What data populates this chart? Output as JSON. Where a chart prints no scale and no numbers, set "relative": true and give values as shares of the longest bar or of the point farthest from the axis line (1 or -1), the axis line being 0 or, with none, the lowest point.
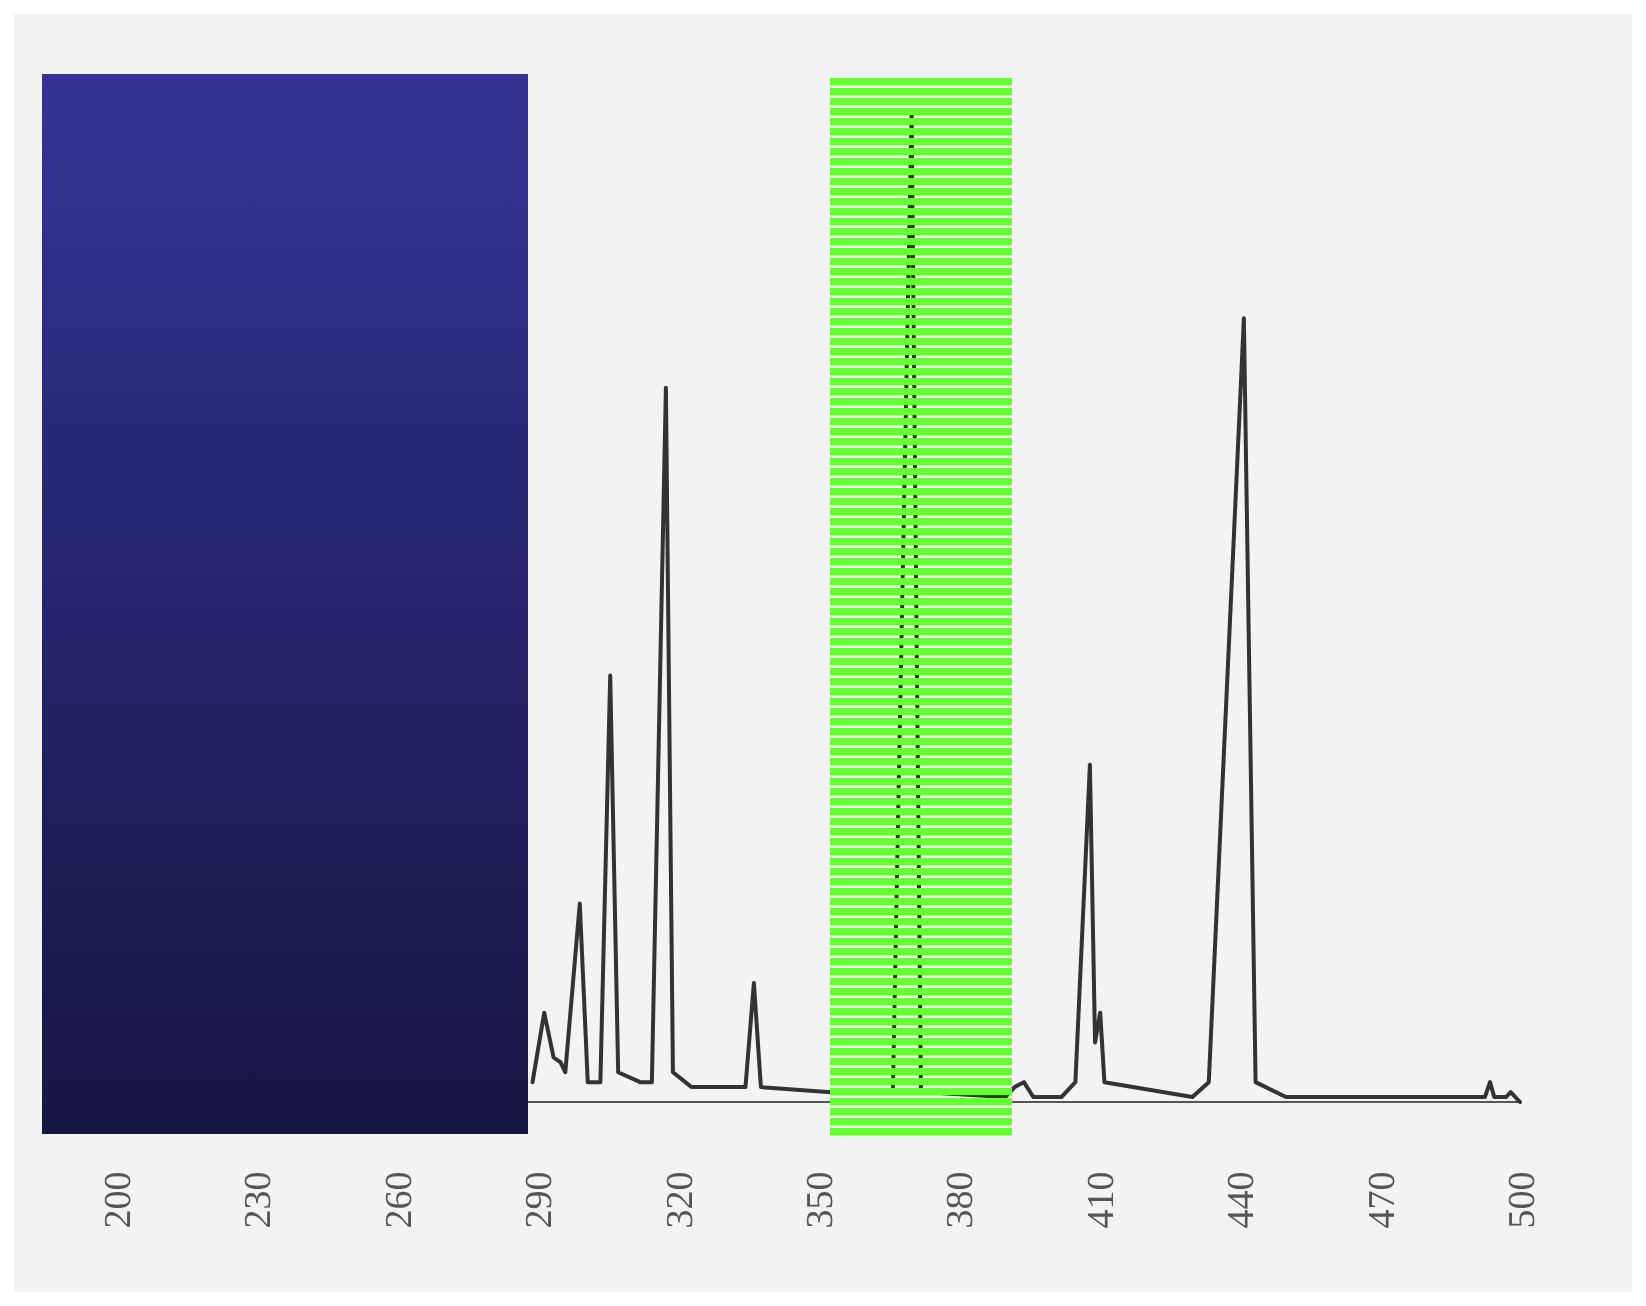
{
  "chart_data": {
    "type": "line",
    "relative": true,
    "xlim": [
      200,
      500
    ],
    "xticks": [
      200,
      230,
      260,
      290,
      320,
      350,
      380,
      410,
      440,
      470,
      500
    ],
    "grid": false,
    "marker": "none",
    "line_style": "solid",
    "series": [
      {
        "color": "#333333",
        "x": [
          289,
          291.5,
          293.5,
          295,
          296,
          299.1,
          300.8,
          303.5,
          305.6,
          307.3,
          312,
          314.5,
          317.5,
          319,
          323,
          334.5,
          336.3,
          337.8,
          352,
          366,
          370,
          372,
          390,
          392,
          394,
          396,
          402,
          405,
          408.1,
          409.2,
          410.3,
          411.2,
          430,
          433.5,
          441,
          443.5,
          450,
          492.5,
          493.6,
          494.5,
          497,
          498,
          500
        ],
        "values": [
          0.02,
          0.09,
          0.045,
          0.04,
          0.03,
          0.2,
          0.02,
          0.02,
          0.43,
          0.03,
          0.02,
          0.02,
          0.72,
          0.03,
          0.015,
          0.015,
          0.12,
          0.015,
          0.01,
          0.01,
          1.0,
          0.01,
          0.005,
          0.015,
          0.02,
          0.005,
          0.005,
          0.02,
          0.34,
          0.06,
          0.09,
          0.02,
          0.005,
          0.02,
          0.79,
          0.02,
          0.005,
          0.005,
          0.02,
          0.005,
          0.005,
          0.01,
          0
        ]
      }
    ]
  }
}
